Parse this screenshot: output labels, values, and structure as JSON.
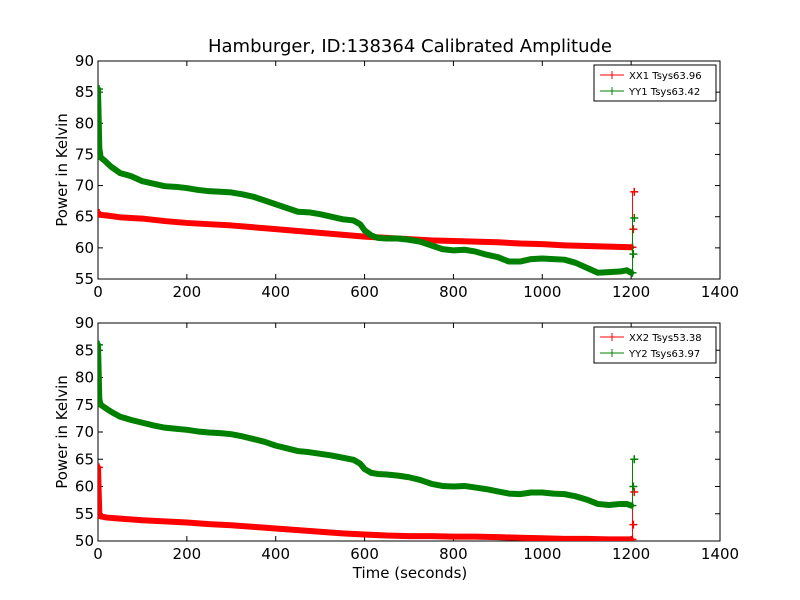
{
  "title": "Hamburger, ID:138364 Calibrated Amplitude",
  "chart_data": [
    {
      "type": "line",
      "ylabel": "Power in Kelvin",
      "xlabel": "",
      "xlim": [
        0,
        1400
      ],
      "ylim": [
        55,
        90
      ],
      "xticks": [
        "0",
        "200",
        "400",
        "600",
        "800",
        "1000",
        "1200",
        "1400"
      ],
      "yticks": [
        "55",
        "60",
        "65",
        "70",
        "75",
        "80",
        "85",
        "90"
      ],
      "legend_position": "top-right",
      "series": [
        {
          "name": "XX1 Tsys63.96",
          "color": "#ff0000",
          "points": [
            [
              0,
              65.6
            ],
            [
              2,
              65.5
            ],
            [
              5,
              65.3
            ],
            [
              20,
              65.2
            ],
            [
              50,
              64.9
            ],
            [
              100,
              64.7
            ],
            [
              150,
              64.3
            ],
            [
              200,
              64.0
            ],
            [
              250,
              63.8
            ],
            [
              300,
              63.6
            ],
            [
              350,
              63.3
            ],
            [
              400,
              63.0
            ],
            [
              450,
              62.7
            ],
            [
              500,
              62.4
            ],
            [
              550,
              62.1
            ],
            [
              600,
              61.8
            ],
            [
              650,
              61.6
            ],
            [
              700,
              61.4
            ],
            [
              750,
              61.2
            ],
            [
              800,
              61.1
            ],
            [
              850,
              61.0
            ],
            [
              900,
              60.9
            ],
            [
              950,
              60.7
            ],
            [
              1000,
              60.6
            ],
            [
              1050,
              60.4
            ],
            [
              1100,
              60.3
            ],
            [
              1150,
              60.2
            ],
            [
              1200,
              60.1
            ]
          ],
          "end_markers": [
            [
              1203,
              60.1
            ],
            [
              1205,
              63.0
            ],
            [
              1207,
              69.0
            ]
          ]
        },
        {
          "name": "YY1 Tsys63.42",
          "color": "#008000",
          "points": [
            [
              0,
              85.5
            ],
            [
              3,
              76.0
            ],
            [
              6,
              74.5
            ],
            [
              15,
              74.0
            ],
            [
              30,
              73.0
            ],
            [
              50,
              72.0
            ],
            [
              75,
              71.5
            ],
            [
              100,
              70.7
            ],
            [
              125,
              70.3
            ],
            [
              150,
              69.9
            ],
            [
              175,
              69.8
            ],
            [
              200,
              69.6
            ],
            [
              225,
              69.3
            ],
            [
              250,
              69.1
            ],
            [
              275,
              69.0
            ],
            [
              300,
              68.9
            ],
            [
              325,
              68.6
            ],
            [
              350,
              68.2
            ],
            [
              375,
              67.6
            ],
            [
              400,
              67.0
            ],
            [
              425,
              66.4
            ],
            [
              450,
              65.8
            ],
            [
              475,
              65.7
            ],
            [
              500,
              65.4
            ],
            [
              525,
              65.0
            ],
            [
              550,
              64.6
            ],
            [
              575,
              64.4
            ],
            [
              590,
              63.8
            ],
            [
              600,
              62.8
            ],
            [
              615,
              62.0
            ],
            [
              630,
              61.6
            ],
            [
              650,
              61.5
            ],
            [
              675,
              61.5
            ],
            [
              700,
              61.3
            ],
            [
              725,
              61.0
            ],
            [
              750,
              60.4
            ],
            [
              775,
              59.8
            ],
            [
              800,
              59.6
            ],
            [
              825,
              59.7
            ],
            [
              850,
              59.4
            ],
            [
              875,
              58.9
            ],
            [
              900,
              58.5
            ],
            [
              925,
              57.8
            ],
            [
              950,
              57.8
            ],
            [
              975,
              58.2
            ],
            [
              1000,
              58.3
            ],
            [
              1025,
              58.2
            ],
            [
              1050,
              58.1
            ],
            [
              1075,
              57.6
            ],
            [
              1100,
              56.8
            ],
            [
              1125,
              56.0
            ],
            [
              1150,
              56.1
            ],
            [
              1175,
              56.2
            ],
            [
              1190,
              56.4
            ],
            [
              1200,
              56.0
            ]
          ],
          "end_markers": [
            [
              1203,
              56.0
            ],
            [
              1205,
              59.0
            ],
            [
              1207,
              64.8
            ]
          ]
        }
      ]
    },
    {
      "type": "line",
      "ylabel": "Power in Kelvin",
      "xlabel": "Time (seconds)",
      "xlim": [
        0,
        1400
      ],
      "ylim": [
        50,
        90
      ],
      "xticks": [
        "0",
        "200",
        "400",
        "600",
        "800",
        "1000",
        "1200",
        "1400"
      ],
      "yticks": [
        "50",
        "55",
        "60",
        "65",
        "70",
        "75",
        "80",
        "85",
        "90"
      ],
      "legend_position": "top-right",
      "series": [
        {
          "name": "XX2 Tsys53.38",
          "color": "#ff0000",
          "points": [
            [
              0,
              63.5
            ],
            [
              3,
              55.0
            ],
            [
              6,
              54.5
            ],
            [
              20,
              54.3
            ],
            [
              50,
              54.1
            ],
            [
              100,
              53.8
            ],
            [
              150,
              53.6
            ],
            [
              200,
              53.4
            ],
            [
              250,
              53.1
            ],
            [
              300,
              52.9
            ],
            [
              350,
              52.6
            ],
            [
              400,
              52.3
            ],
            [
              450,
              52.0
            ],
            [
              500,
              51.7
            ],
            [
              550,
              51.4
            ],
            [
              600,
              51.2
            ],
            [
              650,
              51.0
            ],
            [
              700,
              50.9
            ],
            [
              750,
              50.9
            ],
            [
              800,
              50.8
            ],
            [
              850,
              50.8
            ],
            [
              900,
              50.7
            ],
            [
              950,
              50.6
            ],
            [
              1000,
              50.5
            ],
            [
              1050,
              50.4
            ],
            [
              1100,
              50.4
            ],
            [
              1150,
              50.3
            ],
            [
              1200,
              50.3
            ]
          ],
          "end_markers": [
            [
              1203,
              50.3
            ],
            [
              1205,
              53.0
            ],
            [
              1207,
              59.0
            ]
          ]
        },
        {
          "name": "YY2 Tsys63.97",
          "color": "#008000",
          "points": [
            [
              0,
              86.0
            ],
            [
              3,
              76.0
            ],
            [
              6,
              75.0
            ],
            [
              15,
              74.5
            ],
            [
              30,
              73.7
            ],
            [
              50,
              72.8
            ],
            [
              75,
              72.2
            ],
            [
              100,
              71.7
            ],
            [
              125,
              71.2
            ],
            [
              150,
              70.8
            ],
            [
              175,
              70.6
            ],
            [
              200,
              70.4
            ],
            [
              225,
              70.1
            ],
            [
              250,
              69.9
            ],
            [
              275,
              69.8
            ],
            [
              300,
              69.6
            ],
            [
              325,
              69.2
            ],
            [
              350,
              68.7
            ],
            [
              375,
              68.2
            ],
            [
              400,
              67.5
            ],
            [
              425,
              67.0
            ],
            [
              450,
              66.5
            ],
            [
              475,
              66.3
            ],
            [
              500,
              66.0
            ],
            [
              525,
              65.7
            ],
            [
              550,
              65.3
            ],
            [
              575,
              64.9
            ],
            [
              590,
              64.2
            ],
            [
              600,
              63.2
            ],
            [
              615,
              62.5
            ],
            [
              630,
              62.3
            ],
            [
              650,
              62.2
            ],
            [
              675,
              62.0
            ],
            [
              700,
              61.7
            ],
            [
              725,
              61.2
            ],
            [
              750,
              60.5
            ],
            [
              775,
              60.1
            ],
            [
              800,
              60.0
            ],
            [
              825,
              60.1
            ],
            [
              850,
              59.8
            ],
            [
              875,
              59.5
            ],
            [
              900,
              59.1
            ],
            [
              925,
              58.7
            ],
            [
              950,
              58.6
            ],
            [
              975,
              58.9
            ],
            [
              1000,
              58.9
            ],
            [
              1025,
              58.7
            ],
            [
              1050,
              58.6
            ],
            [
              1075,
              58.2
            ],
            [
              1100,
              57.6
            ],
            [
              1125,
              56.8
            ],
            [
              1150,
              56.6
            ],
            [
              1175,
              56.8
            ],
            [
              1190,
              56.8
            ],
            [
              1200,
              56.5
            ]
          ],
          "end_markers": [
            [
              1203,
              56.5
            ],
            [
              1205,
              60.0
            ],
            [
              1207,
              65.0
            ]
          ]
        }
      ]
    }
  ]
}
